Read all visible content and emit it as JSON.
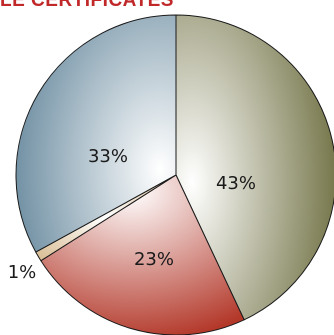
{
  "chart_data": {
    "type": "pie",
    "title": "LE CERTIFICATES",
    "slices": [
      {
        "label": "43%",
        "value": 43,
        "color": "#6f7042"
      },
      {
        "label": "23%",
        "value": 23,
        "color": "#b3382a"
      },
      {
        "label": "1%",
        "value": 1,
        "color": "#caa36a"
      },
      {
        "label": "33%",
        "value": 33,
        "color": "#6b8ca0"
      }
    ]
  }
}
